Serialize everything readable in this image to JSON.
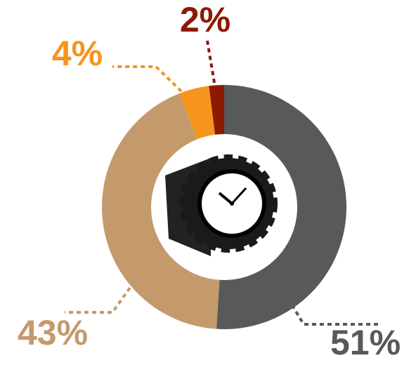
{
  "chart_data": {
    "type": "pie",
    "series": [
      {
        "name": "51%",
        "color": "#58595b",
        "values": [
          51
        ]
      },
      {
        "name": "43%",
        "color": "#c49a6c",
        "values": [
          43
        ]
      },
      {
        "name": "4%",
        "color": "#f7941d",
        "values": [
          4
        ]
      },
      {
        "name": "2%",
        "color": "#8b1a00",
        "values": [
          2
        ]
      }
    ]
  }
}
